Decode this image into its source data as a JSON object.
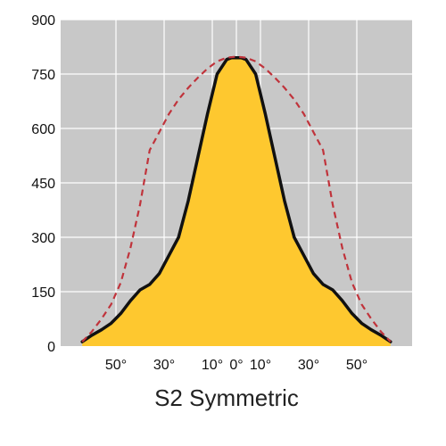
{
  "chart_data": {
    "type": "area",
    "title": "S2 Symmetric",
    "xlabel": "",
    "ylabel": "",
    "ylim": [
      0,
      900
    ],
    "xlim": [
      -70,
      70
    ],
    "y_ticks": [
      0,
      150,
      300,
      450,
      600,
      750,
      900
    ],
    "x_tick_positions": [
      -50,
      -30,
      -10,
      0,
      10,
      30,
      50
    ],
    "x_tick_labels": [
      "50°",
      "30°",
      "10°",
      "0°",
      "10°",
      "30°",
      "50°"
    ],
    "grid": true,
    "colors": {
      "plot_background": "#c8c8c8",
      "grid": "#ffffff",
      "fill": "#fec82f",
      "solid_line": "#111111",
      "dashed_line": "#c0333b"
    },
    "series": [
      {
        "style": "solid-filled",
        "x": [
          -64,
          -60,
          -56,
          -52,
          -48,
          -44,
          -40,
          -36,
          -32,
          -28,
          -24,
          -20,
          -16,
          -12,
          -8,
          -4,
          -2,
          0,
          2,
          4,
          8,
          12,
          16,
          20,
          24,
          28,
          32,
          36,
          40,
          44,
          48,
          52,
          56,
          60,
          64
        ],
        "y": [
          12,
          30,
          45,
          63,
          90,
          125,
          155,
          170,
          200,
          250,
          300,
          400,
          520,
          640,
          750,
          790,
          795,
          795,
          795,
          790,
          750,
          640,
          520,
          400,
          300,
          250,
          200,
          170,
          155,
          125,
          90,
          63,
          45,
          30,
          12
        ]
      },
      {
        "style": "dashed",
        "x": [
          -64,
          -60,
          -56,
          -52,
          -48,
          -44,
          -40,
          -36,
          -32,
          -28,
          -24,
          -20,
          -16,
          -12,
          -8,
          -4,
          0,
          4,
          8,
          12,
          16,
          20,
          24,
          28,
          32,
          36,
          40,
          44,
          48,
          52,
          56,
          60,
          64
        ],
        "y": [
          12,
          40,
          75,
          115,
          175,
          270,
          390,
          540,
          590,
          640,
          680,
          712,
          740,
          765,
          785,
          795,
          798,
          795,
          785,
          765,
          740,
          712,
          680,
          640,
          590,
          540,
          390,
          270,
          175,
          115,
          75,
          40,
          12
        ]
      }
    ]
  }
}
